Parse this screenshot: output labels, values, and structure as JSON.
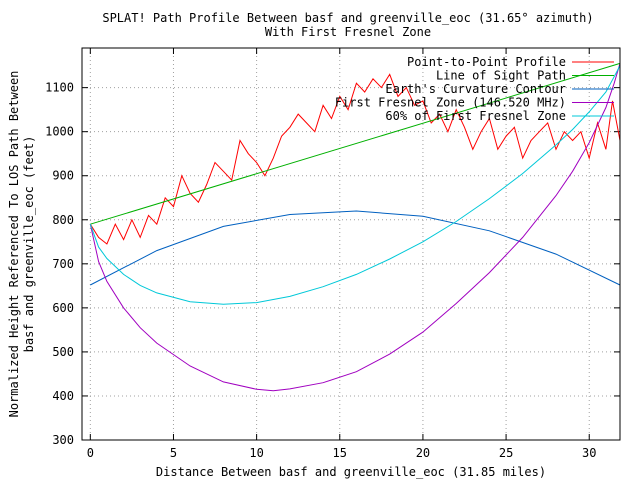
{
  "chart_data": {
    "type": "line",
    "title": "SPLAT! Path Profile Between basf and greenville_eoc (31.65° azimuth)",
    "subtitle": "With First Fresnel Zone",
    "xlabel": "Distance Between basf and greenville_eoc (31.85 miles)",
    "ylabel_line1": "Normalized Height Referenced To LOS Path Between",
    "ylabel_line2": "basf and greenville_eoc (feet)",
    "xlim": [
      -0.5,
      31.85
    ],
    "ylim": [
      300,
      1190
    ],
    "x_ticks": [
      "0",
      "5",
      "10",
      "15",
      "20",
      "25",
      "30"
    ],
    "y_ticks": [
      "300",
      "400",
      "500",
      "600",
      "700",
      "800",
      "900",
      "1000",
      "1100"
    ],
    "grid": true,
    "legend_position": "top-right",
    "series": [
      {
        "name": "Point-to-Point Profile",
        "color": "#ff0000",
        "x": [
          0,
          0.5,
          1,
          1.5,
          2,
          2.5,
          3,
          3.5,
          4,
          4.5,
          5,
          5.5,
          6,
          6.5,
          7,
          7.5,
          8,
          8.5,
          9,
          9.5,
          10,
          10.5,
          11,
          11.5,
          12,
          12.5,
          13,
          13.5,
          14,
          14.5,
          15,
          15.5,
          16,
          16.5,
          17,
          17.5,
          18,
          18.5,
          19,
          19.5,
          20,
          20.5,
          21,
          21.5,
          22,
          22.5,
          23,
          23.5,
          24,
          24.5,
          25,
          25.5,
          26,
          26.5,
          27,
          27.5,
          28,
          28.5,
          29,
          29.5,
          30,
          30.5,
          31,
          31.4,
          31.85
        ],
        "values": [
          790,
          760,
          745,
          790,
          755,
          800,
          760,
          810,
          790,
          850,
          830,
          900,
          860,
          840,
          880,
          930,
          910,
          890,
          980,
          950,
          930,
          900,
          940,
          990,
          1010,
          1040,
          1020,
          1000,
          1060,
          1030,
          1080,
          1050,
          1110,
          1090,
          1120,
          1100,
          1130,
          1080,
          1100,
          1060,
          1070,
          1020,
          1040,
          1000,
          1050,
          1010,
          960,
          1000,
          1030,
          960,
          990,
          1010,
          940,
          980,
          1000,
          1020,
          960,
          1000,
          980,
          1000,
          940,
          1020,
          960,
          1070,
          980
        ]
      },
      {
        "name": "Line of Sight Path",
        "color": "#00b000",
        "x": [
          0,
          31.85
        ],
        "values": [
          790,
          1155
        ]
      },
      {
        "name": "Earth's Curvature Contour",
        "color": "#0060c0",
        "x": [
          0,
          4,
          8,
          12,
          16,
          20,
          24,
          28,
          31.85
        ],
        "values": [
          652,
          730,
          785,
          812,
          820,
          808,
          775,
          722,
          652
        ]
      },
      {
        "name": "First Fresnel Zone (146.520 MHz)",
        "color": "#a000c0",
        "x": [
          0,
          0.5,
          1,
          2,
          3,
          4,
          6,
          8,
          10,
          11,
          12,
          14,
          16,
          18,
          20,
          22,
          24,
          26,
          28,
          29,
          30,
          31,
          31.5,
          31.85
        ],
        "values": [
          790,
          705,
          660,
          600,
          555,
          520,
          468,
          432,
          415,
          412,
          416,
          430,
          455,
          495,
          545,
          610,
          680,
          760,
          855,
          910,
          975,
          1055,
          1110,
          1155
        ]
      },
      {
        "name": "60% of First Fresnel Zone",
        "color": "#00c8d8",
        "x": [
          0,
          0.5,
          1,
          2,
          3,
          4,
          6,
          8,
          10,
          12,
          14,
          16,
          18,
          20,
          22,
          24,
          26,
          28,
          29,
          30,
          31,
          31.5,
          31.85
        ],
        "values": [
          790,
          738,
          712,
          676,
          651,
          634,
          614,
          608,
          612,
          626,
          648,
          676,
          711,
          750,
          796,
          848,
          905,
          970,
          1005,
          1045,
          1090,
          1125,
          1150
        ]
      }
    ]
  }
}
